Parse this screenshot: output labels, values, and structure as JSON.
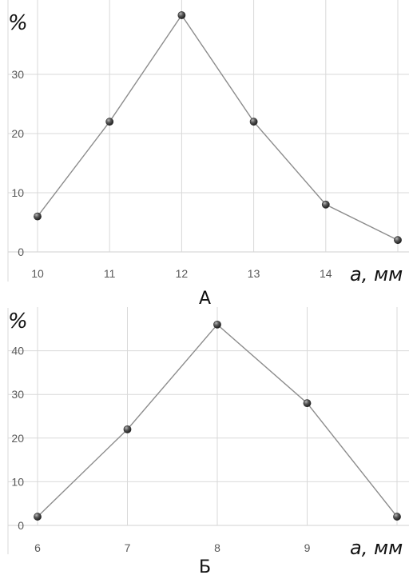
{
  "chart_data": [
    {
      "type": "line",
      "panel_label": "А",
      "y_unit": "%",
      "x_unit": "a, мм",
      "x": [
        10,
        11,
        12,
        13,
        14,
        15
      ],
      "y": [
        6,
        22,
        40,
        22,
        8,
        2
      ],
      "x_tick_labels": [
        "10",
        "11",
        "12",
        "13",
        "14"
      ],
      "y_tick_labels": [
        "0",
        "10",
        "20",
        "30"
      ],
      "xlim": [
        10,
        15
      ],
      "ylim": [
        0,
        40
      ],
      "grid": true,
      "marker": "sphere",
      "line_color": "#8c8c8c",
      "marker_color": "#4d4d4d",
      "grid_color": "#d9d9d9"
    },
    {
      "type": "line",
      "panel_label": "Б",
      "y_unit": "%",
      "x_unit": "a, мм",
      "x": [
        6,
        7,
        8,
        9,
        10
      ],
      "y": [
        2,
        22,
        46,
        28,
        2
      ],
      "x_tick_labels": [
        "6",
        "7",
        "8",
        "9"
      ],
      "y_tick_labels": [
        "0",
        "10",
        "20",
        "30",
        "40"
      ],
      "xlim": [
        6,
        10
      ],
      "ylim": [
        0,
        50
      ],
      "grid": true,
      "marker": "sphere",
      "line_color": "#8c8c8c",
      "marker_color": "#4d4d4d",
      "grid_color": "#d9d9d9"
    }
  ]
}
